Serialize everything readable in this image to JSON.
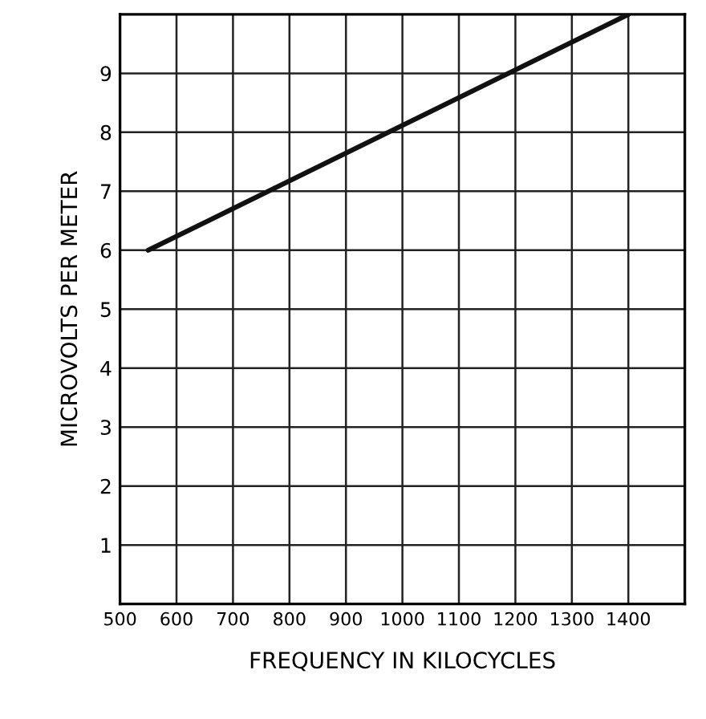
{
  "chart_data": {
    "type": "line",
    "xlabel": "FREQUENCY IN KILOCYCLES",
    "ylabel": "MICROVOLTS PER METER",
    "x": [
      550,
      1400
    ],
    "series": [
      {
        "color": "#111111",
        "values": [
          6,
          10
        ]
      }
    ],
    "xlim": [
      500,
      1500
    ],
    "ylim": [
      0,
      10
    ],
    "xticks": [
      500,
      600,
      700,
      800,
      900,
      1000,
      1100,
      1200,
      1300,
      1400
    ],
    "yticks": [
      1,
      2,
      3,
      4,
      5,
      6,
      7,
      8,
      9
    ],
    "grid": true,
    "marker": "none",
    "line_style": "solid"
  }
}
